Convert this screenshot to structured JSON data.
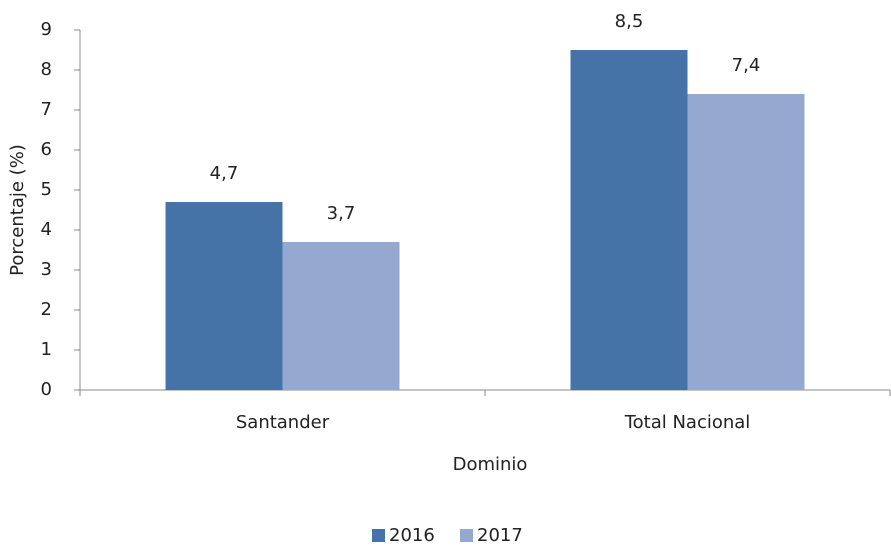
{
  "chart_data": {
    "type": "bar",
    "x_label": "Dominio",
    "y_label": "Porcentaje (%)",
    "categories": [
      "Santander",
      "Total Nacional"
    ],
    "series": [
      {
        "name": "2016",
        "color": "#4573a7",
        "values": [
          4.7,
          8.5
        ],
        "value_labels": [
          "4,7",
          "8,5"
        ]
      },
      {
        "name": "2017",
        "color": "#95a9d0",
        "values": [
          3.7,
          7.4
        ],
        "value_labels": [
          "3,7",
          "7,4"
        ]
      }
    ],
    "ylim": [
      0,
      9
    ],
    "yticks": [
      0,
      1,
      2,
      3,
      4,
      5,
      6,
      7,
      8,
      9
    ]
  }
}
